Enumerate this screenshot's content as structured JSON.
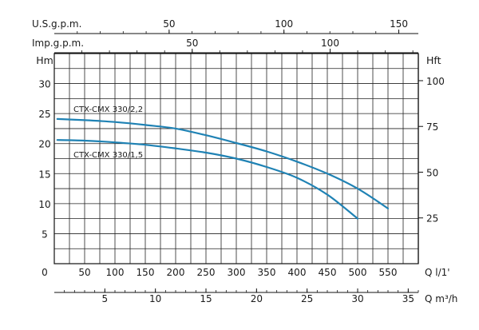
{
  "chart_data": {
    "type": "line",
    "title": "",
    "grid": true,
    "x": {
      "unit": "Q l/1'",
      "range": [
        0,
        600
      ],
      "ticks": [
        0,
        50,
        100,
        150,
        200,
        250,
        300,
        350,
        400,
        450,
        500,
        550
      ]
    },
    "y_left": {
      "unit": "Hm",
      "range": [
        0,
        35
      ],
      "ticks": [
        5,
        10,
        15,
        20,
        25,
        30
      ]
    },
    "y_right": {
      "unit": "Hft",
      "ticks": [
        25,
        50,
        75,
        100
      ]
    },
    "secondary_x_axes": [
      {
        "unit": "U.S.g.p.m.",
        "position": "top",
        "ticks": [
          50,
          100,
          150
        ]
      },
      {
        "unit": "Imp.g.p.m.",
        "position": "top",
        "ticks": [
          50,
          100
        ]
      },
      {
        "unit": "Q m³/h",
        "position": "bottom",
        "ticks": [
          5,
          10,
          15,
          20,
          25,
          30,
          35
        ]
      }
    ],
    "series": [
      {
        "name": "CTX-CMX 330/2,2",
        "color": "#1f82b4",
        "points": [
          [
            0,
            24.1
          ],
          [
            50,
            23.9
          ],
          [
            100,
            23.6
          ],
          [
            150,
            23.1
          ],
          [
            200,
            22.5
          ],
          [
            250,
            21.4
          ],
          [
            300,
            20.1
          ],
          [
            350,
            18.7
          ],
          [
            400,
            17.0
          ],
          [
            450,
            15.0
          ],
          [
            500,
            12.5
          ],
          [
            550,
            9.2
          ]
        ]
      },
      {
        "name": "CTX-CMX 330/1,5",
        "color": "#1f82b4",
        "points": [
          [
            0,
            20.6
          ],
          [
            50,
            20.5
          ],
          [
            100,
            20.2
          ],
          [
            150,
            19.8
          ],
          [
            200,
            19.2
          ],
          [
            250,
            18.5
          ],
          [
            300,
            17.5
          ],
          [
            350,
            16.1
          ],
          [
            400,
            14.3
          ],
          [
            450,
            11.5
          ],
          [
            500,
            7.5
          ]
        ]
      }
    ]
  }
}
